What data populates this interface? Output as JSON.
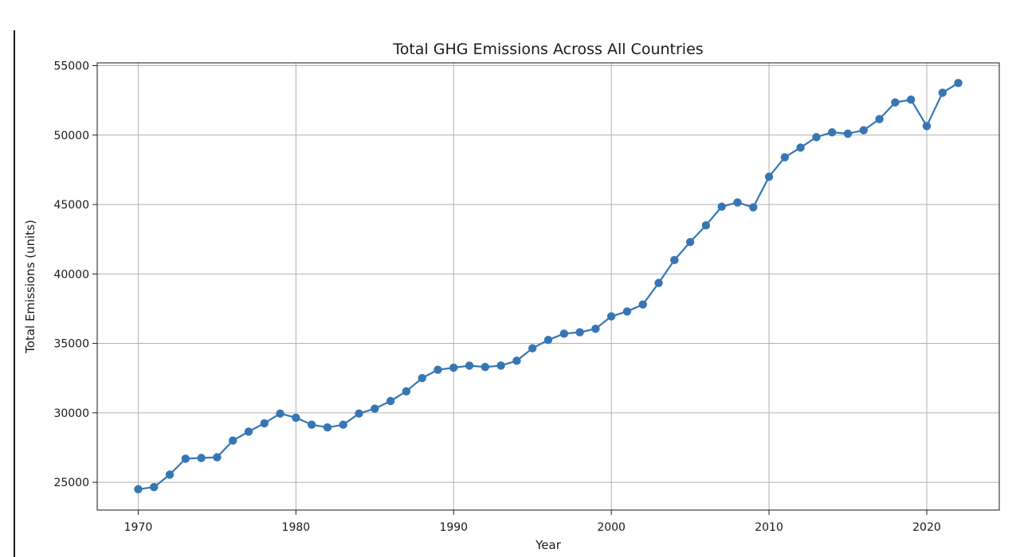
{
  "chart_data": {
    "type": "line",
    "title": "Total GHG Emissions Across All Countries",
    "xlabel": "Year",
    "ylabel": "Total Emissions (units)",
    "xlim": [
      1967.4,
      2024.6
    ],
    "ylim": [
      23000,
      55200
    ],
    "xticks": [
      1970,
      1980,
      1990,
      2000,
      2010,
      2020
    ],
    "yticks": [
      25000,
      30000,
      35000,
      40000,
      45000,
      50000,
      55000
    ],
    "grid": true,
    "marker": "circle",
    "line_color": "#3776b4",
    "series": [
      {
        "x": [
          1970,
          1971,
          1972,
          1973,
          1974,
          1975,
          1976,
          1977,
          1978,
          1979,
          1980,
          1981,
          1982,
          1983,
          1984,
          1985,
          1986,
          1987,
          1988,
          1989,
          1990,
          1991,
          1992,
          1993,
          1994,
          1995,
          1996,
          1997,
          1998,
          1999,
          2000,
          2001,
          2002,
          2003,
          2004,
          2005,
          2006,
          2007,
          2008,
          2009,
          2010,
          2011,
          2012,
          2013,
          2014,
          2015,
          2016,
          2017,
          2018,
          2019,
          2020,
          2021,
          2022
        ],
        "y": [
          24500,
          24650,
          25550,
          26700,
          26750,
          26800,
          28000,
          28650,
          29250,
          29950,
          29650,
          29150,
          28950,
          29150,
          29950,
          30300,
          30850,
          31550,
          32500,
          33100,
          33250,
          33400,
          33300,
          33400,
          33750,
          34650,
          35250,
          35700,
          35800,
          36050,
          36950,
          37300,
          37800,
          39350,
          41000,
          42300,
          43500,
          44850,
          45150,
          44800,
          47000,
          48400,
          49100,
          49850,
          50200,
          50100,
          50350,
          51150,
          52350,
          52550,
          50650,
          53050,
          53750
        ]
      }
    ]
  }
}
